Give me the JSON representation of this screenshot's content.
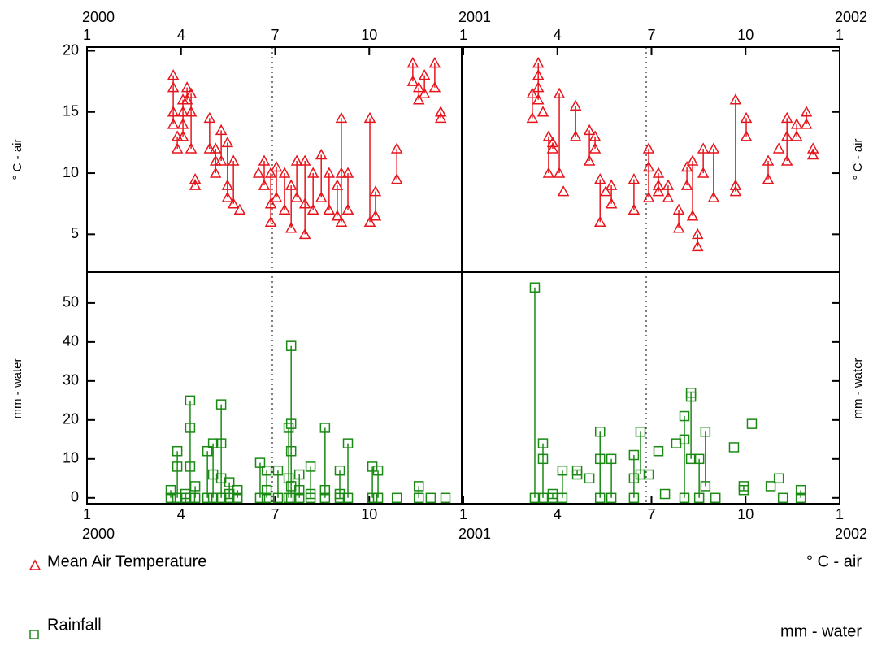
{
  "chart_data": [
    {
      "type": "scatter",
      "ylabel": "° C - air",
      "ylim": [
        1.9,
        20.3
      ],
      "yticks": [
        5,
        10,
        15,
        20
      ],
      "xlim": [
        0,
        24
      ],
      "xticks": [
        {
          "value": 0,
          "label": "1"
        },
        {
          "value": 3,
          "label": "4"
        },
        {
          "value": 6,
          "label": "7"
        },
        {
          "value": 9,
          "label": "10"
        },
        {
          "value": 12,
          "label": "1"
        },
        {
          "value": 15,
          "label": "4"
        },
        {
          "value": 18,
          "label": "7"
        },
        {
          "value": 21,
          "label": "10"
        },
        {
          "value": 24,
          "label": "1"
        }
      ],
      "year_ticks": [
        {
          "value": 0,
          "label": "2000"
        },
        {
          "value": 12,
          "label": "2001"
        },
        {
          "value": 24,
          "label": "2002"
        }
      ],
      "series": [
        {
          "name": "Mean Air Temperature",
          "color": "#e8141c",
          "marker": "triangle",
          "x": [
            2.75,
            2.75,
            2.75,
            2.75,
            2.88,
            2.88,
            3.06,
            3.06,
            3.06,
            3.06,
            3.19,
            3.19,
            3.32,
            3.32,
            3.32,
            3.45,
            3.45,
            3.91,
            3.91,
            4.1,
            4.1,
            4.1,
            4.28,
            4.28,
            4.48,
            4.48,
            4.48,
            4.67,
            4.67,
            4.87,
            5.47,
            5.65,
            5.65,
            5.86,
            5.86,
            5.86,
            6.04,
            6.04,
            6.3,
            6.3,
            6.51,
            6.51,
            6.69,
            6.69,
            6.95,
            6.95,
            6.95,
            7.21,
            7.21,
            7.47,
            7.47,
            7.72,
            7.72,
            7.98,
            7.98,
            8.11,
            8.11,
            8.11,
            8.32,
            8.32,
            9.02,
            9.02,
            9.2,
            9.2,
            9.88,
            9.88,
            10.39,
            10.39,
            10.58,
            10.58,
            10.76,
            10.76,
            11.09,
            11.09,
            11.28,
            11.28,
            14.2,
            14.2,
            14.39,
            14.39,
            14.39,
            14.39,
            14.54,
            14.72,
            14.72,
            14.85,
            14.85,
            15.06,
            15.06,
            15.19,
            15.58,
            15.58,
            16.02,
            16.02,
            16.2,
            16.2,
            16.36,
            16.36,
            16.54,
            16.72,
            16.72,
            17.44,
            17.44,
            17.91,
            17.91,
            17.91,
            18.22,
            18.22,
            18.22,
            18.53,
            18.53,
            18.87,
            18.87,
            19.13,
            19.13,
            19.31,
            19.31,
            19.47,
            19.47,
            19.65,
            19.65,
            19.98,
            19.98,
            20.68,
            20.68,
            20.68,
            21.02,
            21.02,
            21.72,
            21.72,
            22.06,
            22.32,
            22.32,
            22.32,
            22.63,
            22.63,
            22.94,
            22.94,
            23.15,
            23.15
          ],
          "values": [
            18,
            17,
            15,
            14,
            13,
            12,
            16,
            15,
            14,
            13,
            17,
            16,
            16.5,
            15,
            12,
            9.5,
            9,
            14.5,
            12,
            12,
            11,
            10,
            13.5,
            11,
            12.5,
            9,
            8,
            11,
            7.5,
            7,
            10,
            11,
            9,
            10,
            7.5,
            6,
            10.5,
            8,
            10,
            7,
            9,
            5.5,
            11,
            8,
            11,
            7.5,
            5,
            10,
            7,
            11.5,
            8,
            10,
            7,
            9,
            6.5,
            14.5,
            10,
            6,
            10,
            7,
            14.5,
            6,
            8.5,
            6.5,
            12,
            9.5,
            19,
            17.5,
            17,
            16,
            18,
            16.5,
            19,
            17,
            15,
            14.5,
            16.5,
            14.5,
            19,
            18,
            17,
            16,
            15,
            13,
            10,
            12.5,
            12,
            16.5,
            10,
            8.5,
            15.5,
            13,
            13.5,
            11,
            13,
            12,
            9.5,
            6,
            8.5,
            9,
            7.5,
            9.5,
            7,
            12,
            10.5,
            8,
            10,
            9,
            8.5,
            9,
            8,
            7,
            5.5,
            10.5,
            9,
            11,
            6.5,
            5,
            4,
            12,
            10,
            12,
            8,
            16,
            9,
            8.5,
            14.5,
            13,
            11,
            9.5,
            12,
            14.5,
            13,
            11,
            14,
            13,
            15,
            14,
            12,
            11.5
          ]
        }
      ]
    },
    {
      "type": "scatter",
      "ylabel": "mm - water",
      "ylim": [
        -1.5,
        57.9
      ],
      "yticks": [
        0,
        10,
        20,
        30,
        40,
        50
      ],
      "xlim": [
        0,
        24
      ],
      "xticks": [
        {
          "value": 0,
          "label": "1"
        },
        {
          "value": 3,
          "label": "4"
        },
        {
          "value": 6,
          "label": "7"
        },
        {
          "value": 9,
          "label": "10"
        },
        {
          "value": 12,
          "label": "1"
        },
        {
          "value": 15,
          "label": "4"
        },
        {
          "value": 18,
          "label": "7"
        },
        {
          "value": 21,
          "label": "10"
        },
        {
          "value": 24,
          "label": "1"
        }
      ],
      "year_ticks": [
        {
          "value": 0,
          "label": "2000"
        },
        {
          "value": 12,
          "label": "2001"
        },
        {
          "value": 24,
          "label": "2002"
        }
      ],
      "series": [
        {
          "name": "Rainfall",
          "color": "#1a8a14",
          "marker": "square",
          "x": [
            2.67,
            2.67,
            2.88,
            2.88,
            2.88,
            3.14,
            3.14,
            3.29,
            3.29,
            3.29,
            3.29,
            3.45,
            3.45,
            3.84,
            3.84,
            4.02,
            4.02,
            4.02,
            4.28,
            4.28,
            4.28,
            4.28,
            4.54,
            4.54,
            4.54,
            4.8,
            4.8,
            5.52,
            5.52,
            5.73,
            5.73,
            5.73,
            6.09,
            6.09,
            6.43,
            6.43,
            6.43,
            6.51,
            6.51,
            6.51,
            6.51,
            6.51,
            6.77,
            6.77,
            6.77,
            7.13,
            7.13,
            7.13,
            7.59,
            7.59,
            7.59,
            8.06,
            8.06,
            8.06,
            8.32,
            8.32,
            9.1,
            9.1,
            9.28,
            9.28,
            9.88,
            10.58,
            10.58,
            10.96,
            11.43,
            14.28,
            14.28,
            14.54,
            14.54,
            14.54,
            14.85,
            14.85,
            15.16,
            15.16,
            15.63,
            15.63,
            16.02,
            16.36,
            16.36,
            16.36,
            16.72,
            16.72,
            17.44,
            17.44,
            17.44,
            17.65,
            17.65,
            17.91,
            18.22,
            18.43,
            18.79,
            19.05,
            19.05,
            19.05,
            19.26,
            19.26,
            19.26,
            19.52,
            19.52,
            19.72,
            19.72,
            20.04,
            20.63,
            20.94,
            20.94,
            21.2,
            21.8,
            22.06,
            22.19,
            22.76,
            22.76
          ],
          "values": [
            2,
            0,
            12,
            8,
            0,
            0,
            1,
            25,
            18,
            8,
            0,
            3,
            0,
            12,
            0,
            14,
            6,
            0,
            24,
            14,
            5,
            0,
            4,
            1,
            0,
            2,
            0,
            9,
            0,
            7,
            2,
            0,
            7,
            0,
            18,
            5,
            0,
            39,
            19,
            12,
            3,
            0,
            6,
            2,
            0,
            8,
            1,
            0,
            18,
            2,
            0,
            7,
            1,
            0,
            14,
            0,
            8,
            0,
            7,
            0,
            0,
            3,
            0,
            0,
            0,
            54,
            0,
            14,
            10,
            0,
            1,
            0,
            7,
            0,
            7,
            6,
            5,
            17,
            10,
            0,
            10,
            0,
            11,
            5,
            0,
            17,
            6,
            6,
            12,
            1,
            14,
            21,
            15,
            0,
            27,
            26,
            10,
            10,
            0,
            17,
            3,
            0,
            13,
            3,
            2,
            19,
            3,
            5,
            0,
            2,
            0
          ]
        }
      ]
    }
  ]
}
